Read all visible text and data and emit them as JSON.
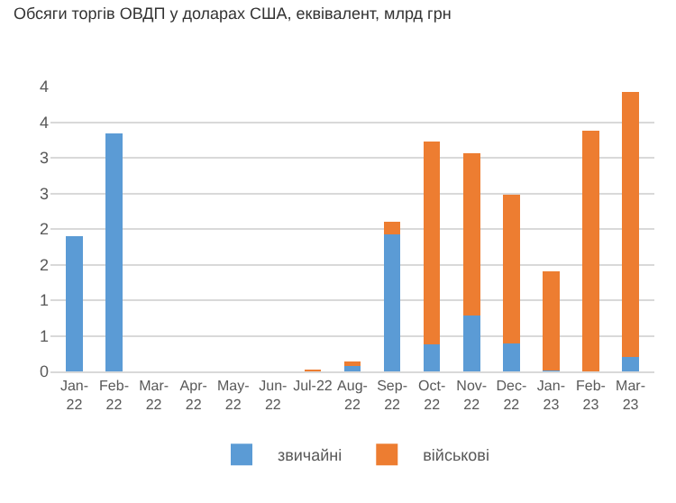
{
  "chart_data": {
    "type": "bar",
    "title": "Обсяги торгів ОВДП у доларах США, еквівалент, млрд грн",
    "categories": [
      "Jan-22",
      "Feb-22",
      "Mar-22",
      "Apr-22",
      "May-22",
      "Jun-22",
      "Jul-22",
      "Aug-22",
      "Sep-22",
      "Oct-22",
      "Nov-22",
      "Dec-22",
      "Jan-23",
      "Feb-23",
      "Mar-23"
    ],
    "series": [
      {
        "name": "звичайні",
        "color": "#5b9bd5",
        "values": [
          1.9,
          3.34,
          0,
          0,
          0,
          0,
          0,
          0.08,
          1.92,
          0.38,
          0.79,
          0.39,
          0.01,
          0,
          0.2
        ]
      },
      {
        "name": "військові",
        "color": "#ed7d31",
        "values": [
          0,
          0,
          0,
          0,
          0,
          0,
          0.02,
          0.06,
          0.18,
          2.85,
          2.27,
          2.09,
          1.4,
          3.38,
          3.73
        ]
      }
    ],
    "stacked": true,
    "ylim": [
      0,
      4
    ],
    "yticks": [
      0,
      {
        "value": 0.5,
        "label": "1"
      },
      1,
      {
        "value": 1.5,
        "label": "2"
      },
      2,
      {
        "value": 2.5,
        "label": "3"
      },
      3,
      {
        "value": 3.5,
        "label": "4"
      },
      4
    ],
    "grid": "y",
    "legend": "bottom"
  }
}
